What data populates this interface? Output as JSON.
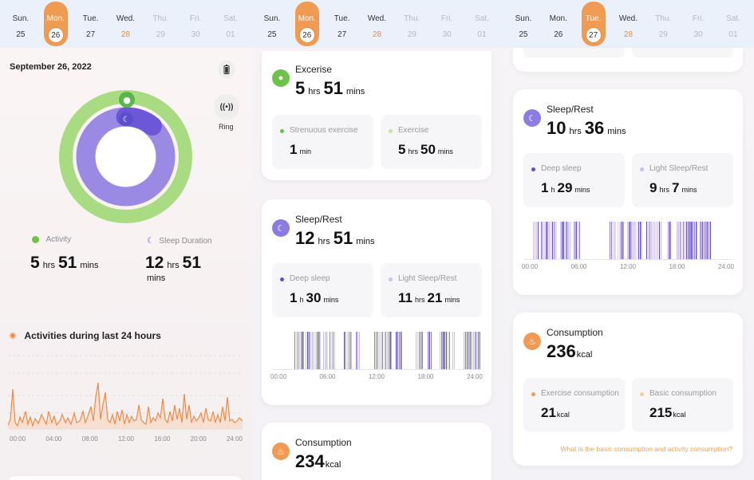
{
  "week": [
    {
      "name": "Sun.",
      "num": "25"
    },
    {
      "name": "Mon.",
      "num": "26"
    },
    {
      "name": "Tue.",
      "num": "27"
    },
    {
      "name": "Wed.",
      "num": "28"
    },
    {
      "name": "Thu.",
      "num": "29"
    },
    {
      "name": "Fri.",
      "num": "30"
    },
    {
      "name": "Sat.",
      "num": "01"
    }
  ],
  "colors": {
    "accent": "#f09b53",
    "green": "#8fd26a",
    "purple": "#8c7be0",
    "deep": "#5b4fcf",
    "light": "#c8bff2"
  },
  "p1": {
    "date": "September 26, 2022",
    "ring_label": "Ring",
    "activity_label": "Activity",
    "activity_value": {
      "h": "5",
      "hu": "hrs",
      "m": "51",
      "mu": "mins"
    },
    "sleep_label": "Sleep Duration",
    "sleep_value": {
      "h": "12",
      "hu": "hrs",
      "m": "51",
      "mu": "mins"
    },
    "activities_title": "Activities during last 24 hours",
    "xticks": [
      "00:00",
      "04:00",
      "08:00",
      "12:00",
      "16:00",
      "20:00",
      "24:00"
    ]
  },
  "p2": {
    "exercise": {
      "title": "Excerise",
      "h": "5",
      "hu": "hrs",
      "m": "51",
      "mu": "mins",
      "strenuous_label": "Strenuous exercise",
      "strenuous_val": "1",
      "strenuous_unit": "min",
      "ex_label": "Exercise",
      "ex_h": "5",
      "ex_hu": "hrs",
      "ex_m": "50",
      "ex_mu": "mins"
    },
    "sleep": {
      "title": "Sleep/Rest",
      "h": "12",
      "hu": "hrs",
      "m": "51",
      "mu": "mins",
      "deep_label": "Deep sleep",
      "deep_h": "1",
      "deep_hu": "h",
      "deep_m": "30",
      "deep_mu": "mins",
      "light_label": "Light Sleep/Rest",
      "light_h": "11",
      "light_hu": "hrs",
      "light_m": "21",
      "light_mu": "mins",
      "xticks": [
        "00:00",
        "06:00",
        "12:00",
        "18:00",
        "24:00"
      ]
    },
    "consumption": {
      "title": "Consumption",
      "val": "234",
      "unit": "kcal"
    }
  },
  "p3": {
    "sleep": {
      "title": "Sleep/Rest",
      "h": "10",
      "hu": "hrs",
      "m": "36",
      "mu": "mins",
      "deep_label": "Deep sleep",
      "deep_h": "1",
      "deep_hu": "h",
      "deep_m": "29",
      "deep_mu": "mins",
      "light_label": "Light Sleep/Rest",
      "light_h": "9",
      "light_hu": "hrs",
      "light_m": "7",
      "light_mu": "mins",
      "xticks": [
        "00:00",
        "06:00",
        "12:00",
        "18:00",
        "24:00"
      ]
    },
    "consumption": {
      "title": "Consumption",
      "val": "236",
      "unit": "kcal",
      "ex_label": "Exercise consumption",
      "ex_val": "21",
      "ex_unit": "kcal",
      "basic_label": "Basic consumption",
      "basic_val": "215",
      "basic_unit": "kcal",
      "link": "What is the basic consumption and activity consumption?"
    }
  }
}
